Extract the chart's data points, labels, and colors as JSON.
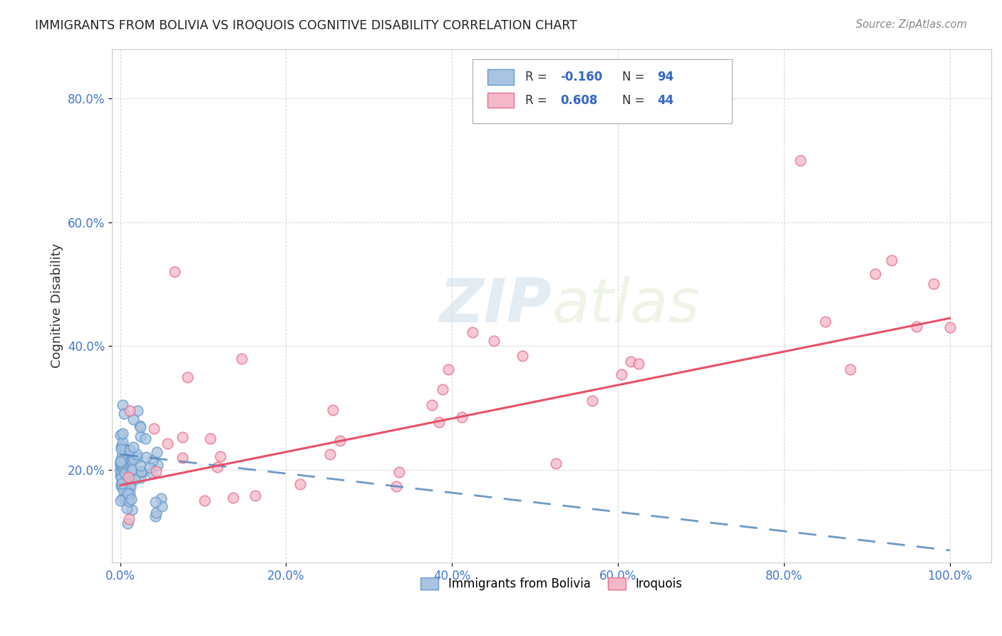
{
  "title": "IMMIGRANTS FROM BOLIVIA VS IROQUOIS COGNITIVE DISABILITY CORRELATION CHART",
  "source": "Source: ZipAtlas.com",
  "ylabel": "Cognitive Disability",
  "x_tick_labels": [
    "0.0%",
    "20.0%",
    "40.0%",
    "60.0%",
    "80.0%",
    "100.0%"
  ],
  "x_tick_vals": [
    0,
    0.2,
    0.4,
    0.6,
    0.8,
    1.0
  ],
  "y_tick_labels": [
    "20.0%",
    "40.0%",
    "60.0%",
    "80.0%"
  ],
  "y_tick_vals": [
    0.2,
    0.4,
    0.6,
    0.8
  ],
  "xlim": [
    -0.01,
    1.05
  ],
  "ylim": [
    0.05,
    0.88
  ],
  "blue_R": -0.16,
  "blue_N": 94,
  "pink_R": 0.608,
  "pink_N": 44,
  "blue_color": "#a8c4e0",
  "blue_edge": "#6699cc",
  "pink_color": "#f4b8c8",
  "pink_edge": "#e87090",
  "blue_trend_color": "#5588bb",
  "pink_trend_color": "#e8506a",
  "legend_label_blue": "Immigrants from Bolivia",
  "legend_label_pink": "Iroquois",
  "watermark_zip": "ZIP",
  "watermark_atlas": "atlas",
  "background_color": "#ffffff",
  "grid_color": "#cccccc",
  "blue_trend_y0": 0.225,
  "blue_trend_y1": 0.07,
  "pink_trend_y0": 0.175,
  "pink_trend_y1": 0.445
}
